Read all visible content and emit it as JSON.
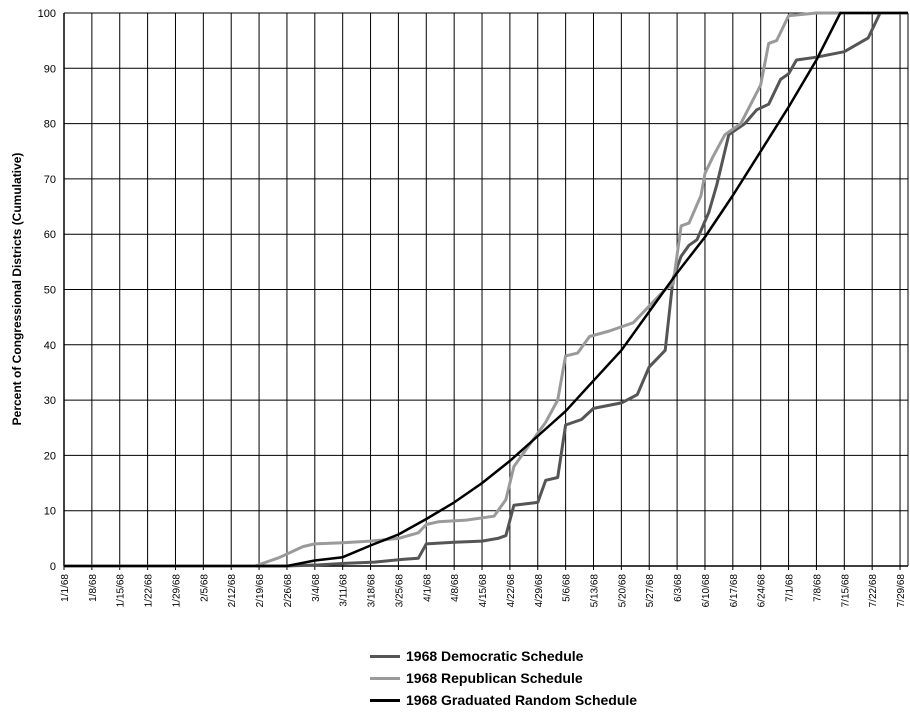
{
  "chart_data": {
    "type": "line",
    "title": "",
    "xlabel": "",
    "ylabel": "Percent of Congressional Districts (Cumulative)",
    "ylim": [
      0,
      100
    ],
    "yticks": [
      0,
      10,
      20,
      30,
      40,
      50,
      60,
      70,
      80,
      90,
      100
    ],
    "xlim": [
      "1/1/68",
      "7/31/68"
    ],
    "xticks": [
      "1/1/68",
      "1/8/68",
      "1/15/68",
      "1/22/68",
      "1/29/68",
      "2/5/68",
      "2/12/68",
      "2/19/68",
      "2/26/68",
      "3/4/68",
      "3/11/68",
      "3/18/68",
      "3/25/68",
      "4/1/68",
      "4/8/68",
      "4/15/68",
      "4/22/68",
      "4/29/68",
      "5/6/68",
      "5/13/68",
      "5/20/68",
      "5/27/68",
      "6/3/68",
      "6/10/68",
      "6/17/68",
      "6/24/68",
      "7/1/68",
      "7/8/68",
      "7/15/68",
      "7/22/68",
      "7/29/68"
    ],
    "grid": true,
    "legend_position": "bottom",
    "series": [
      {
        "name": "1968 Democratic Schedule",
        "color": "#555555",
        "points": [
          [
            "1/1/68",
            0
          ],
          [
            "2/26/68",
            0
          ],
          [
            "3/5/68",
            0.2
          ],
          [
            "3/12/68",
            0.5
          ],
          [
            "3/19/68",
            0.7
          ],
          [
            "3/26/68",
            1.2
          ],
          [
            "3/30/68",
            1.4
          ],
          [
            "4/1/68",
            4
          ],
          [
            "4/8/68",
            4.3
          ],
          [
            "4/15/68",
            4.5
          ],
          [
            "4/19/68",
            5
          ],
          [
            "4/21/68",
            5.5
          ],
          [
            "4/23/68",
            11
          ],
          [
            "4/29/68",
            11.5
          ],
          [
            "5/1/68",
            15.5
          ],
          [
            "5/4/68",
            16
          ],
          [
            "5/6/68",
            25.5
          ],
          [
            "5/10/68",
            26.5
          ],
          [
            "5/13/68",
            28.5
          ],
          [
            "5/20/68",
            29.5
          ],
          [
            "5/24/68",
            31
          ],
          [
            "5/27/68",
            36
          ],
          [
            "5/31/68",
            39
          ],
          [
            "6/2/68",
            52
          ],
          [
            "6/4/68",
            56
          ],
          [
            "6/6/68",
            58
          ],
          [
            "6/8/68",
            59
          ],
          [
            "6/11/68",
            64
          ],
          [
            "6/13/68",
            69
          ],
          [
            "6/16/68",
            78
          ],
          [
            "6/20/68",
            80
          ],
          [
            "6/23/68",
            82.5
          ],
          [
            "6/26/68",
            83.5
          ],
          [
            "6/29/68",
            88
          ],
          [
            "7/1/68",
            89
          ],
          [
            "7/3/68",
            91.5
          ],
          [
            "7/8/68",
            92
          ],
          [
            "7/15/68",
            93
          ],
          [
            "7/21/68",
            95.5
          ],
          [
            "7/24/68",
            100
          ],
          [
            "7/31/68",
            100
          ]
        ]
      },
      {
        "name": "1968 Republican Schedule",
        "color": "#9a9a9a",
        "points": [
          [
            "1/1/68",
            0
          ],
          [
            "2/18/68",
            0
          ],
          [
            "2/24/68",
            1.5
          ],
          [
            "3/1/68",
            3.5
          ],
          [
            "3/4/68",
            4
          ],
          [
            "3/11/68",
            4.2
          ],
          [
            "3/18/68",
            4.5
          ],
          [
            "3/25/68",
            5
          ],
          [
            "3/30/68",
            6
          ],
          [
            "4/1/68",
            7.5
          ],
          [
            "4/4/68",
            8
          ],
          [
            "4/11/68",
            8.3
          ],
          [
            "4/18/68",
            9
          ],
          [
            "4/21/68",
            12
          ],
          [
            "4/23/68",
            18
          ],
          [
            "4/27/68",
            22
          ],
          [
            "5/1/68",
            26
          ],
          [
            "5/4/68",
            30
          ],
          [
            "5/6/68",
            38
          ],
          [
            "5/9/68",
            38.5
          ],
          [
            "5/12/68",
            41.5
          ],
          [
            "5/17/68",
            42.5
          ],
          [
            "5/23/68",
            44
          ],
          [
            "5/27/68",
            47
          ],
          [
            "5/31/68",
            50
          ],
          [
            "6/2/68",
            51
          ],
          [
            "6/4/68",
            61.5
          ],
          [
            "6/6/68",
            62
          ],
          [
            "6/9/68",
            67
          ],
          [
            "6/10/68",
            71
          ],
          [
            "6/12/68",
            74
          ],
          [
            "6/15/68",
            78
          ],
          [
            "6/19/68",
            80
          ],
          [
            "6/24/68",
            87
          ],
          [
            "6/26/68",
            94.5
          ],
          [
            "6/28/68",
            95
          ],
          [
            "7/1/68",
            99.5
          ],
          [
            "7/8/68",
            100
          ],
          [
            "7/31/68",
            100
          ]
        ]
      },
      {
        "name": "1968 Graduated Random Schedule",
        "color": "#000000",
        "points": [
          [
            "1/1/68",
            0
          ],
          [
            "2/26/68",
            0
          ],
          [
            "3/4/68",
            1
          ],
          [
            "3/11/68",
            1.6
          ],
          [
            "3/18/68",
            3.7
          ],
          [
            "3/25/68",
            5.7
          ],
          [
            "4/1/68",
            8.5
          ],
          [
            "4/8/68",
            11.5
          ],
          [
            "4/15/68",
            15
          ],
          [
            "4/22/68",
            19
          ],
          [
            "4/29/68",
            23.5
          ],
          [
            "5/6/68",
            28
          ],
          [
            "5/13/68",
            33.5
          ],
          [
            "5/20/68",
            39
          ],
          [
            "5/27/68",
            46
          ],
          [
            "6/3/68",
            53
          ],
          [
            "6/10/68",
            59.5
          ],
          [
            "6/17/68",
            67
          ],
          [
            "6/24/68",
            75
          ],
          [
            "7/1/68",
            83
          ],
          [
            "7/8/68",
            91.5
          ],
          [
            "7/14/68",
            100
          ],
          [
            "7/31/68",
            100
          ]
        ]
      }
    ]
  }
}
